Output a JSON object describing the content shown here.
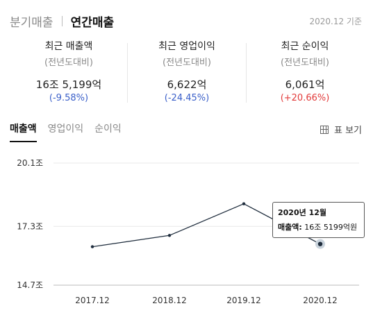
{
  "period_tabs": [
    "분기매출",
    "연간매출"
  ],
  "as_of": "2020.12 기준",
  "metrics": [
    {
      "title": "최근 매출액",
      "subtitle": "(전년도대비)",
      "value": "16조 5,199억",
      "change": "(-9.58%)",
      "direction": "down"
    },
    {
      "title": "최근 영업이익",
      "subtitle": "(전년도대비)",
      "value": "6,622억",
      "change": "(-24.45%)",
      "direction": "down"
    },
    {
      "title": "최근 순이익",
      "subtitle": "(전년도대비)",
      "value": "6,061억",
      "change": "(+20.66%)",
      "direction": "up"
    }
  ],
  "chart_tabs": [
    "매출액",
    "영업이익",
    "순이익"
  ],
  "table_view_label": "표 보기",
  "colors": {
    "line": "#1f2d3d",
    "negative": "#3a5fc9",
    "positive": "#e23a3a",
    "grid": "#e8e8e8"
  },
  "icons": {
    "table_view": "table-icon"
  },
  "chart_data": {
    "type": "line",
    "title": "",
    "xlabel": "",
    "ylabel": "",
    "x": [
      "2017.12",
      "2018.12",
      "2019.12",
      "2020.12"
    ],
    "series": [
      {
        "name": "매출액",
        "unit": "조",
        "values": [
          16.4,
          16.9,
          18.3,
          16.52
        ]
      }
    ],
    "y_ticks": [
      {
        "value": 20.1,
        "label": "20.1조"
      },
      {
        "value": 17.3,
        "label": "17.3조"
      },
      {
        "value": 14.7,
        "label": "14.7조"
      }
    ],
    "ylim": [
      14.7,
      20.1
    ],
    "grid": "horizontal",
    "highlight_index": 3,
    "tooltip": {
      "title": "2020년 12월",
      "key": "매출액:",
      "value": "16조 5199억원"
    }
  }
}
